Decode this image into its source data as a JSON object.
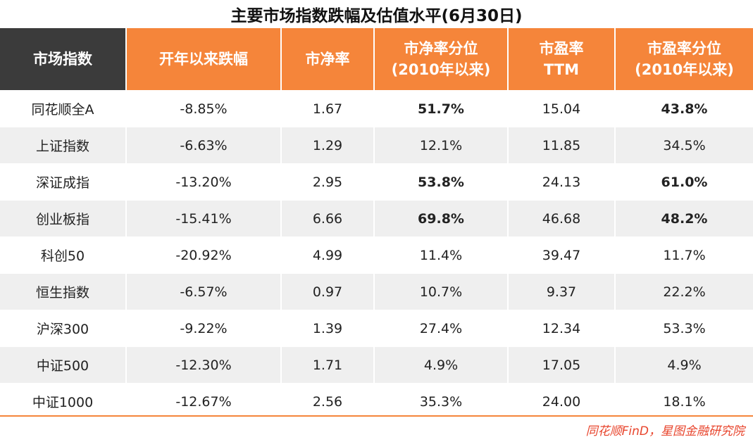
{
  "chart_data": {
    "type": "table",
    "title": "主要市场指数跌幅及估值水平(6月30日)",
    "columns": [
      {
        "lines": [
          "市场指数"
        ]
      },
      {
        "lines": [
          "开年以来跌幅"
        ]
      },
      {
        "lines": [
          "市净率"
        ]
      },
      {
        "lines": [
          "市净率分位",
          "(2010年以来)"
        ]
      },
      {
        "lines": [
          "市盈率",
          "TTM"
        ]
      },
      {
        "lines": [
          "市盈率分位",
          "(2010年以来)"
        ]
      }
    ],
    "rows": [
      {
        "cells": [
          "同花顺全A",
          "-8.85%",
          "1.67",
          "51.7%",
          "15.04",
          "43.8%"
        ],
        "bold": [
          false,
          false,
          false,
          true,
          false,
          true
        ]
      },
      {
        "cells": [
          "上证指数",
          "-6.63%",
          "1.29",
          "12.1%",
          "11.85",
          "34.5%"
        ],
        "bold": [
          false,
          false,
          false,
          false,
          false,
          false
        ]
      },
      {
        "cells": [
          "深证成指",
          "-13.20%",
          "2.95",
          "53.8%",
          "24.13",
          "61.0%"
        ],
        "bold": [
          false,
          false,
          false,
          true,
          false,
          true
        ]
      },
      {
        "cells": [
          "创业板指",
          "-15.41%",
          "6.66",
          "69.8%",
          "46.68",
          "48.2%"
        ],
        "bold": [
          false,
          false,
          false,
          true,
          false,
          true
        ]
      },
      {
        "cells": [
          "科创50",
          "-20.92%",
          "4.99",
          "11.4%",
          "39.47",
          "11.7%"
        ],
        "bold": [
          false,
          false,
          false,
          false,
          false,
          false
        ]
      },
      {
        "cells": [
          "恒生指数",
          "-6.57%",
          "0.97",
          "10.7%",
          "9.37",
          "22.2%"
        ],
        "bold": [
          false,
          false,
          false,
          false,
          false,
          false
        ]
      },
      {
        "cells": [
          "沪深300",
          "-9.22%",
          "1.39",
          "27.4%",
          "12.34",
          "53.3%"
        ],
        "bold": [
          false,
          false,
          false,
          false,
          false,
          false
        ]
      },
      {
        "cells": [
          "中证500",
          "-12.30%",
          "1.71",
          "4.9%",
          "17.05",
          "4.9%"
        ],
        "bold": [
          false,
          false,
          false,
          false,
          false,
          false
        ]
      },
      {
        "cells": [
          "中证1000",
          "-12.67%",
          "2.56",
          "35.3%",
          "24.00",
          "18.1%"
        ],
        "bold": [
          false,
          false,
          false,
          false,
          false,
          false
        ]
      }
    ],
    "colors": {
      "header_first": "#3b3b3b",
      "header": "#f5853a",
      "row_alt": "#efefef",
      "source": "#e8452d"
    }
  },
  "source": "同花顺FinD，星图金融研究院"
}
